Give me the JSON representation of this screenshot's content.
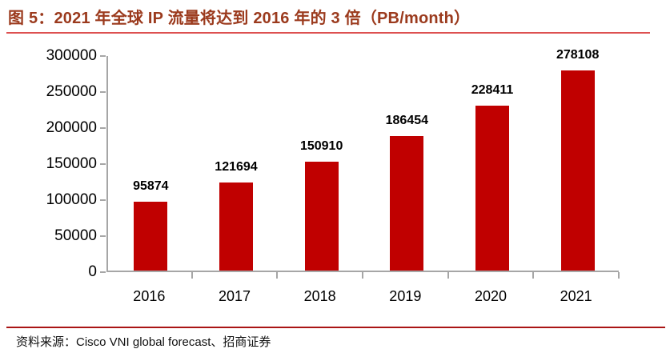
{
  "title": "图 5：2021 年全球 IP 流量将达到 2016 年的 3 倍（PB/month）",
  "source_note": "资料来源：Cisco VNI global forecast、招商证券",
  "colors": {
    "bar": "#C00000",
    "title_text": "#9B3A1D",
    "title_underline": "#DD5151",
    "source_divider": "#AA1515",
    "axis": "#A6A6A6",
    "label_text": "#000000"
  },
  "chart_data": {
    "type": "bar",
    "title": "图 5：2021 年全球 IP 流量将达到 2016 年的 3 倍（PB/month）",
    "unit": "PB/month",
    "categories": [
      "2016",
      "2017",
      "2018",
      "2019",
      "2020",
      "2021"
    ],
    "values": [
      95874,
      121694,
      150910,
      186454,
      228411,
      278108
    ],
    "data_labels": [
      "95874",
      "121694",
      "150910",
      "186454",
      "228411",
      "278108"
    ],
    "xlabel": "",
    "ylabel": "",
    "ylim": [
      0,
      300000
    ],
    "yticks": [
      300000,
      250000,
      200000,
      150000,
      100000,
      50000,
      0
    ],
    "grid": false,
    "legend": false,
    "bar_color": "#C00000",
    "source": "资料来源：Cisco VNI global forecast、招商证券"
  }
}
